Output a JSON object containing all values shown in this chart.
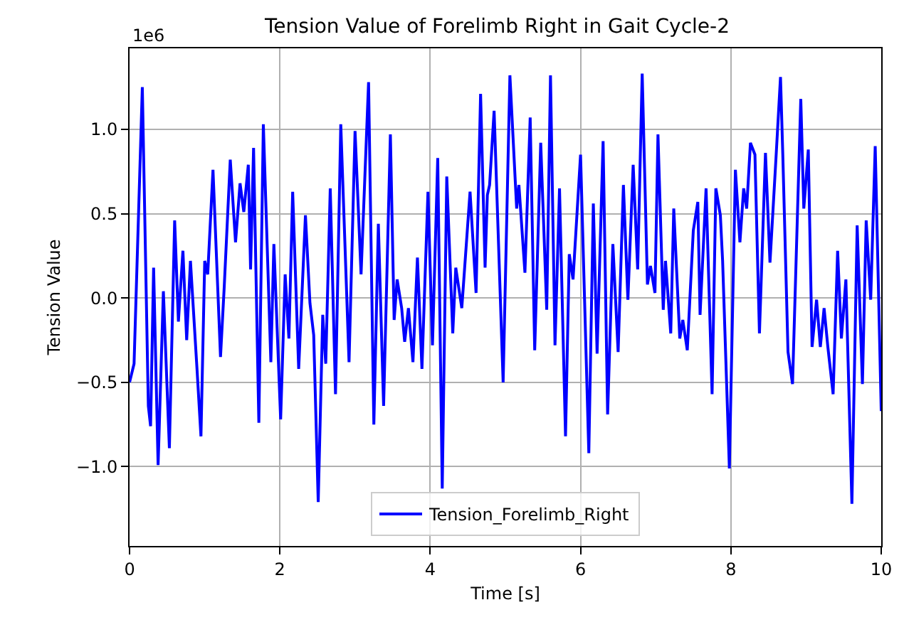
{
  "chart_data": {
    "type": "line",
    "title": "Tension Value of Forelimb Right in Gait Cycle-2",
    "xlabel": "Time [s]",
    "ylabel": "Tension Value",
    "annotations": [
      "1e6"
    ],
    "xlim": [
      0,
      10
    ],
    "xticks": [
      0,
      2,
      4,
      6,
      8,
      10
    ],
    "ylim": [
      -1.47,
      1.48
    ],
    "yticks": [
      {
        "value": -1.0,
        "label": "−1.0"
      },
      {
        "value": -0.5,
        "label": "−0.5"
      },
      {
        "value": 0.0,
        "label": "0.0"
      },
      {
        "value": 0.5,
        "label": "0.5"
      },
      {
        "value": 1.0,
        "label": "1.0"
      }
    ],
    "grid": true,
    "legend": "bottom",
    "marker": "none",
    "line_style": "solid",
    "x": [
      0,
      0.06,
      0.17,
      0.25,
      0.28,
      0.32,
      0.38,
      0.45,
      0.53,
      0.6,
      0.65,
      0.71,
      0.76,
      0.81,
      0.9,
      0.95,
      1.0,
      1.04,
      1.11,
      1.21,
      1.26,
      1.34,
      1.41,
      1.47,
      1.52,
      1.58,
      1.61,
      1.65,
      1.72,
      1.78,
      1.88,
      1.92,
      2.01,
      2.07,
      2.12,
      2.17,
      2.25,
      2.34,
      2.4,
      2.45,
      2.51,
      2.57,
      2.61,
      2.67,
      2.74,
      2.81,
      2.92,
      3.0,
      3.08,
      3.18,
      3.25,
      3.31,
      3.38,
      3.47,
      3.52,
      3.56,
      3.62,
      3.66,
      3.71,
      3.77,
      3.83,
      3.89,
      3.97,
      4.03,
      4.1,
      4.16,
      4.22,
      4.3,
      4.34,
      4.42,
      4.53,
      4.61,
      4.67,
      4.73,
      4.76,
      4.79,
      4.85,
      4.97,
      5.06,
      5.15,
      5.18,
      5.26,
      5.33,
      5.39,
      5.47,
      5.55,
      5.6,
      5.66,
      5.72,
      5.8,
      5.85,
      5.9,
      6.0,
      6.11,
      6.17,
      6.22,
      6.3,
      6.36,
      6.43,
      6.5,
      6.57,
      6.63,
      6.7,
      6.76,
      6.82,
      6.89,
      6.93,
      6.99,
      7.03,
      7.1,
      7.13,
      7.2,
      7.24,
      7.32,
      7.36,
      7.42,
      7.5,
      7.56,
      7.59,
      7.67,
      7.75,
      7.8,
      7.86,
      7.89,
      7.98,
      8.06,
      8.12,
      8.17,
      8.21,
      8.26,
      8.32,
      8.38,
      8.46,
      8.52,
      8.6,
      8.66,
      8.69,
      8.76,
      8.82,
      8.93,
      8.97,
      9.03,
      9.08,
      9.14,
      9.19,
      9.24,
      9.29,
      9.36,
      9.42,
      9.47,
      9.53,
      9.61,
      9.68,
      9.75,
      9.8,
      9.86,
      9.92,
      10.0
    ],
    "series": [
      {
        "name": "Tension_Forelimb_Right",
        "color": "#0000ff",
        "values": [
          -0.5,
          -0.39,
          1.25,
          -0.64,
          -0.76,
          0.18,
          -0.99,
          0.04,
          -0.89,
          0.46,
          -0.14,
          0.28,
          -0.25,
          0.22,
          -0.44,
          -0.82,
          0.22,
          0.14,
          0.76,
          -0.35,
          0.07,
          0.82,
          0.33,
          0.68,
          0.51,
          0.79,
          0.17,
          0.89,
          -0.74,
          1.03,
          -0.38,
          0.32,
          -0.72,
          0.14,
          -0.24,
          0.63,
          -0.42,
          0.49,
          -0.03,
          -0.22,
          -1.21,
          -0.1,
          -0.39,
          0.65,
          -0.57,
          1.03,
          -0.38,
          0.99,
          0.14,
          1.28,
          -0.75,
          0.44,
          -0.64,
          0.97,
          -0.13,
          0.11,
          -0.06,
          -0.26,
          -0.06,
          -0.38,
          0.24,
          -0.42,
          0.63,
          -0.28,
          0.83,
          -1.13,
          0.72,
          -0.21,
          0.18,
          -0.06,
          0.63,
          0.03,
          1.21,
          0.18,
          0.61,
          0.67,
          1.11,
          -0.5,
          1.32,
          0.53,
          0.67,
          0.15,
          1.07,
          -0.31,
          0.92,
          -0.07,
          1.32,
          -0.28,
          0.65,
          -0.82,
          0.26,
          0.11,
          0.85,
          -0.92,
          0.56,
          -0.33,
          0.93,
          -0.69,
          0.32,
          -0.32,
          0.67,
          -0.01,
          0.79,
          0.17,
          1.33,
          0.08,
          0.19,
          0.03,
          0.97,
          -0.07,
          0.22,
          -0.21,
          0.53,
          -0.24,
          -0.13,
          -0.31,
          0.4,
          0.57,
          -0.1,
          0.65,
          -0.57,
          0.65,
          0.49,
          0.22,
          -1.01,
          0.76,
          0.33,
          0.65,
          0.53,
          0.92,
          0.85,
          -0.21,
          0.86,
          0.21,
          0.83,
          1.31,
          0.86,
          -0.32,
          -0.51,
          1.18,
          0.53,
          0.88,
          -0.29,
          -0.01,
          -0.29,
          -0.06,
          -0.29,
          -0.57,
          0.28,
          -0.24,
          0.11,
          -1.22,
          0.43,
          -0.51,
          0.46,
          -0.01,
          0.9,
          -0.67
        ]
      }
    ]
  }
}
